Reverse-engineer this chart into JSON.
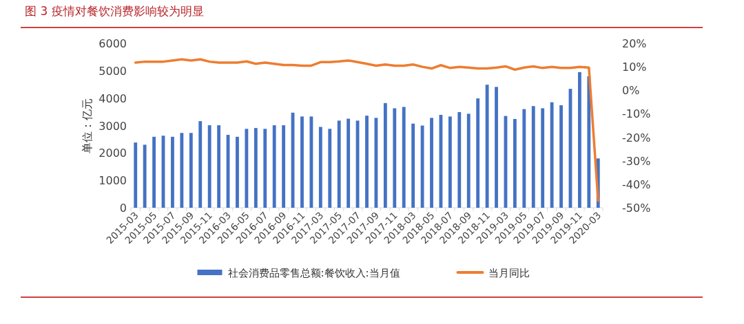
{
  "chart_data": {
    "type": "bar",
    "title": "图 3  疫情对餐饮消费影响较为明显",
    "ylabel": "单位：亿元",
    "categories": [
      "2015-03",
      null,
      "2015-05",
      null,
      "2015-07",
      null,
      "2015-09",
      null,
      "2015-11",
      null,
      "2016-03",
      null,
      "2016-05",
      null,
      "2016-07",
      null,
      "2016-09",
      null,
      "2016-11",
      null,
      "2017-03",
      null,
      "2017-05",
      null,
      "2017-07",
      null,
      "2017-09",
      null,
      "2017-11",
      null,
      "2018-03",
      null,
      "2018-05",
      null,
      "2018-07",
      null,
      "2018-09",
      null,
      "2018-11",
      null,
      "2019-03",
      null,
      "2019-05",
      null,
      "2019-07",
      null,
      "2019-09",
      null,
      "2019-11",
      null,
      "2020-03"
    ],
    "series": [
      {
        "name": "社会消费品零售总额:餐饮收入:当月值",
        "color": "#4472c4",
        "values": [
          2380,
          2300,
          2590,
          2630,
          2590,
          2730,
          2730,
          3160,
          3010,
          3010,
          2660,
          2590,
          2880,
          2910,
          2880,
          3010,
          3010,
          3470,
          3330,
          3330,
          2950,
          2880,
          3180,
          3250,
          3180,
          3360,
          3280,
          3820,
          3630,
          3680,
          3070,
          3000,
          3280,
          3390,
          3330,
          3490,
          3430,
          3990,
          4490,
          4410,
          3350,
          3240,
          3600,
          3710,
          3630,
          3850,
          3740,
          4340,
          4950,
          4800,
          1800
        ]
      },
      {
        "name": "当月同比",
        "type": "line",
        "axis": "y2",
        "color": "#ed7d31",
        "values": [
          11.8,
          12.2,
          12.2,
          12.2,
          12.7,
          13.2,
          12.7,
          13.2,
          12.2,
          11.8,
          11.8,
          11.8,
          12.3,
          11.3,
          11.8,
          11.3,
          10.8,
          10.8,
          10.5,
          10.5,
          12.0,
          12.0,
          12.3,
          12.7,
          12.0,
          11.3,
          10.5,
          11.0,
          10.5,
          10.5,
          11.0,
          10.0,
          9.3,
          10.7,
          9.5,
          10.0,
          9.7,
          9.3,
          9.3,
          9.7,
          10.2,
          8.8,
          9.7,
          10.2,
          9.5,
          10.0,
          9.5,
          9.5,
          10.0,
          9.7,
          -47
        ]
      }
    ],
    "ylim": [
      0,
      6000
    ],
    "yticks": [
      0,
      1000,
      2000,
      3000,
      4000,
      5000,
      6000
    ],
    "y2lim": [
      -50,
      20
    ],
    "y2ticks": [
      {
        "value": -50,
        "label": "-50%"
      },
      {
        "value": -40,
        "label": "-40%"
      },
      {
        "value": -30,
        "label": "-30%"
      },
      {
        "value": -20,
        "label": "-20%"
      },
      {
        "value": -10,
        "label": "-10%"
      },
      {
        "value": 0,
        "label": "0%"
      },
      {
        "value": 10,
        "label": "10%"
      },
      {
        "value": 20,
        "label": "20%"
      }
    ],
    "legend": "bottom"
  }
}
